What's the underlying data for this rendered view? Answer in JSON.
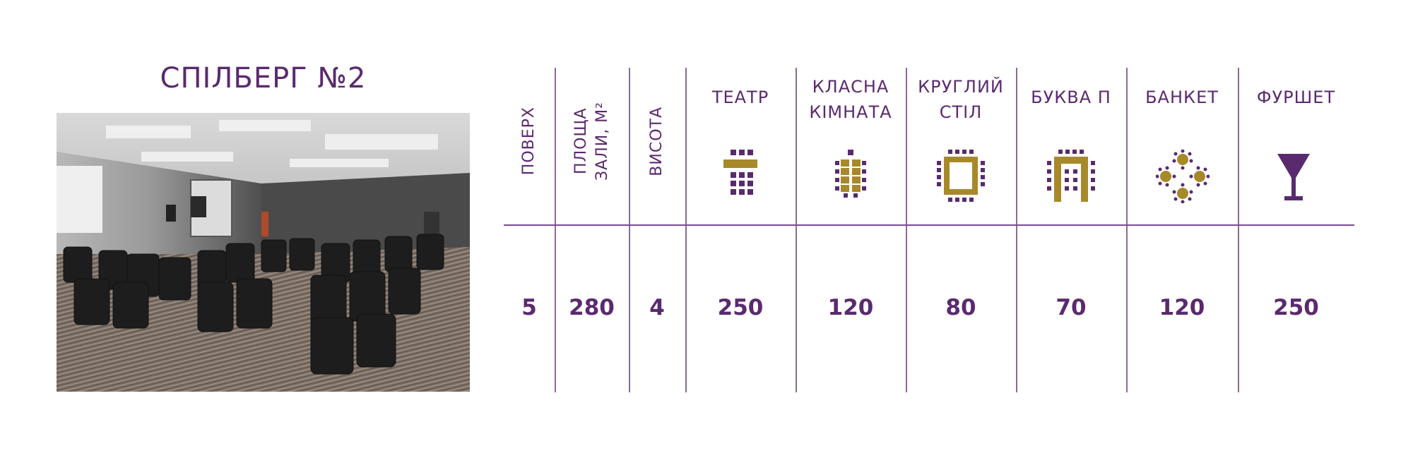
{
  "hall": {
    "title": "СПІЛБЕРГ №2"
  },
  "columns": [
    {
      "key": "floor",
      "label": "ПОВЕРХ",
      "value": "5"
    },
    {
      "key": "area",
      "label_line1": "ПЛОЩА",
      "label_line2": "ЗАЛИ, М²",
      "value": "280"
    },
    {
      "key": "height",
      "label": "ВИСОТА",
      "value": "4"
    },
    {
      "key": "theater",
      "label": "ТЕАТР",
      "icon": "theater-layout-icon",
      "value": "250"
    },
    {
      "key": "classroom",
      "label_line1": "КЛАСНА",
      "label_line2": "КІМНАТА",
      "icon": "classroom-layout-icon",
      "value": "120"
    },
    {
      "key": "round_table",
      "label_line1": "КРУГЛИЙ",
      "label_line2": "СТІЛ",
      "icon": "round-table-layout-icon",
      "value": "80"
    },
    {
      "key": "u_shape",
      "label": "БУКВА П",
      "icon": "u-shape-layout-icon",
      "value": "70"
    },
    {
      "key": "banquet",
      "label": "БАНКЕТ",
      "icon": "banquet-layout-icon",
      "value": "120"
    },
    {
      "key": "buffet",
      "label": "ФУРШЕТ",
      "icon": "cocktail-glass-icon",
      "value": "250"
    }
  ],
  "colors": {
    "primary": "#5a2a6e",
    "accent": "#a8892a",
    "lines": "#7d4a92"
  }
}
